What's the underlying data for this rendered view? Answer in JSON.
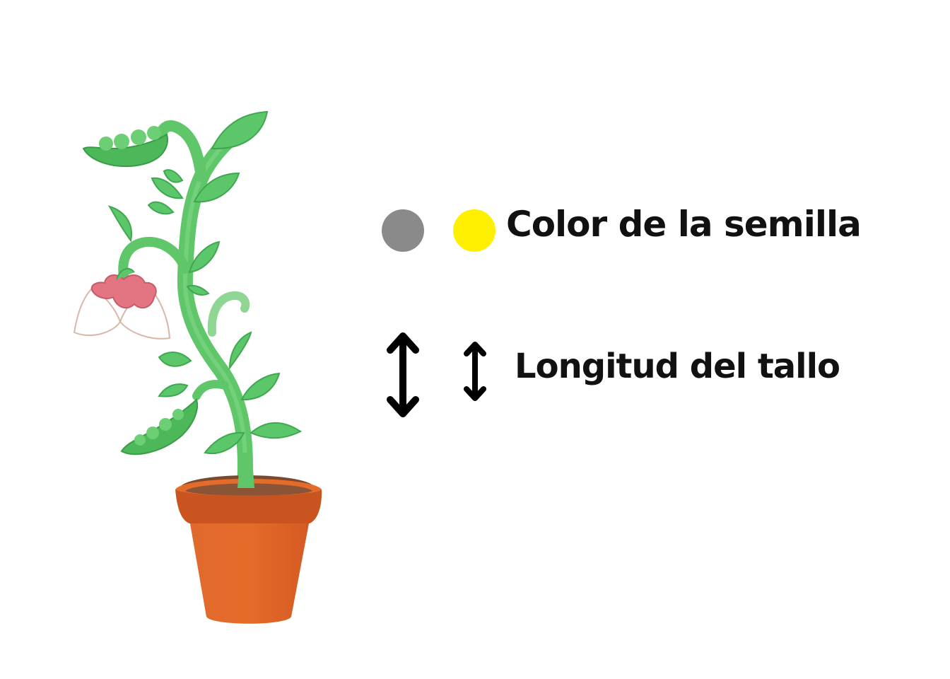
{
  "legend": {
    "seed_color": {
      "label": "Color de la semilla",
      "swatches": [
        {
          "name": "gray",
          "color": "#8a8a8a"
        },
        {
          "name": "yellow",
          "color": "#ffef00"
        }
      ]
    },
    "stem_length": {
      "label": "Longitud del tallo",
      "icons": [
        "long-double-arrow-icon",
        "short-double-arrow-icon"
      ]
    }
  },
  "colors": {
    "leaf": "#5cc76a",
    "leaf_dark": "#3fa84f",
    "stem": "#63c86c",
    "flower": "#e0707c",
    "pot": "#d95f26",
    "pot_rim": "#c75420",
    "soil": "#8c5a3c"
  }
}
